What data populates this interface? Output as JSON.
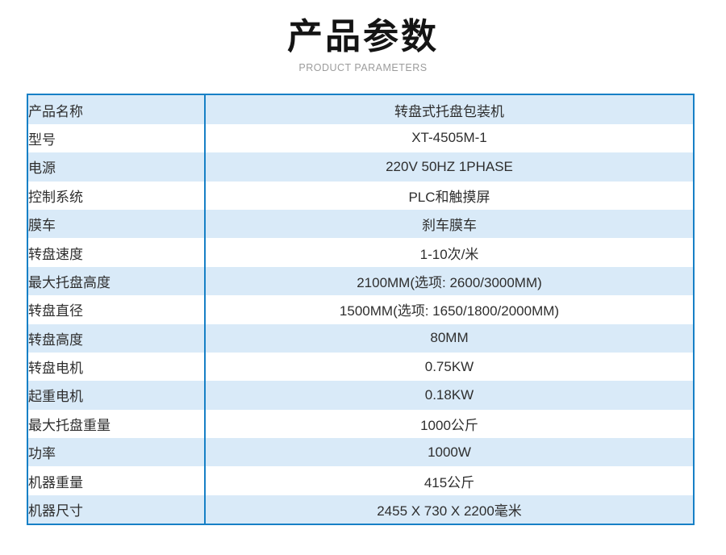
{
  "header": {
    "title": "产品参数",
    "subtitle": "PRODUCT PARAMETERS"
  },
  "table": {
    "rows": [
      {
        "label": "产品名称",
        "value": "转盘式托盘包装机"
      },
      {
        "label": "型号",
        "value": "XT-4505M-1"
      },
      {
        "label": "电源",
        "value": "220V 50HZ 1PHASE"
      },
      {
        "label": "控制系统",
        "value": "PLC和触摸屏"
      },
      {
        "label": "膜车",
        "value": "刹车膜车"
      },
      {
        "label": "转盘速度",
        "value": "1-10次/米"
      },
      {
        "label": "最大托盘高度",
        "value": "2100MM(选项: 2600/3000MM)"
      },
      {
        "label": "转盘直径",
        "value": "1500MM(选项: 1650/1800/2000MM)"
      },
      {
        "label": "转盘高度",
        "value": "80MM"
      },
      {
        "label": "转盘电机",
        "value": "0.75KW"
      },
      {
        "label": "起重电机",
        "value": "0.18KW"
      },
      {
        "label": "最大托盘重量",
        "value": "1000公斤"
      },
      {
        "label": "功率",
        "value": "1000W"
      },
      {
        "label": "机器重量",
        "value": "415公斤"
      },
      {
        "label": "机器尺寸",
        "value": "2455 X 730 X 2200毫米"
      }
    ]
  },
  "colors": {
    "border_blue": "#1780c6",
    "row_alt_blue": "#d9eaf8",
    "title_black": "#141414",
    "subtitle_gray": "#9c9c9c"
  }
}
